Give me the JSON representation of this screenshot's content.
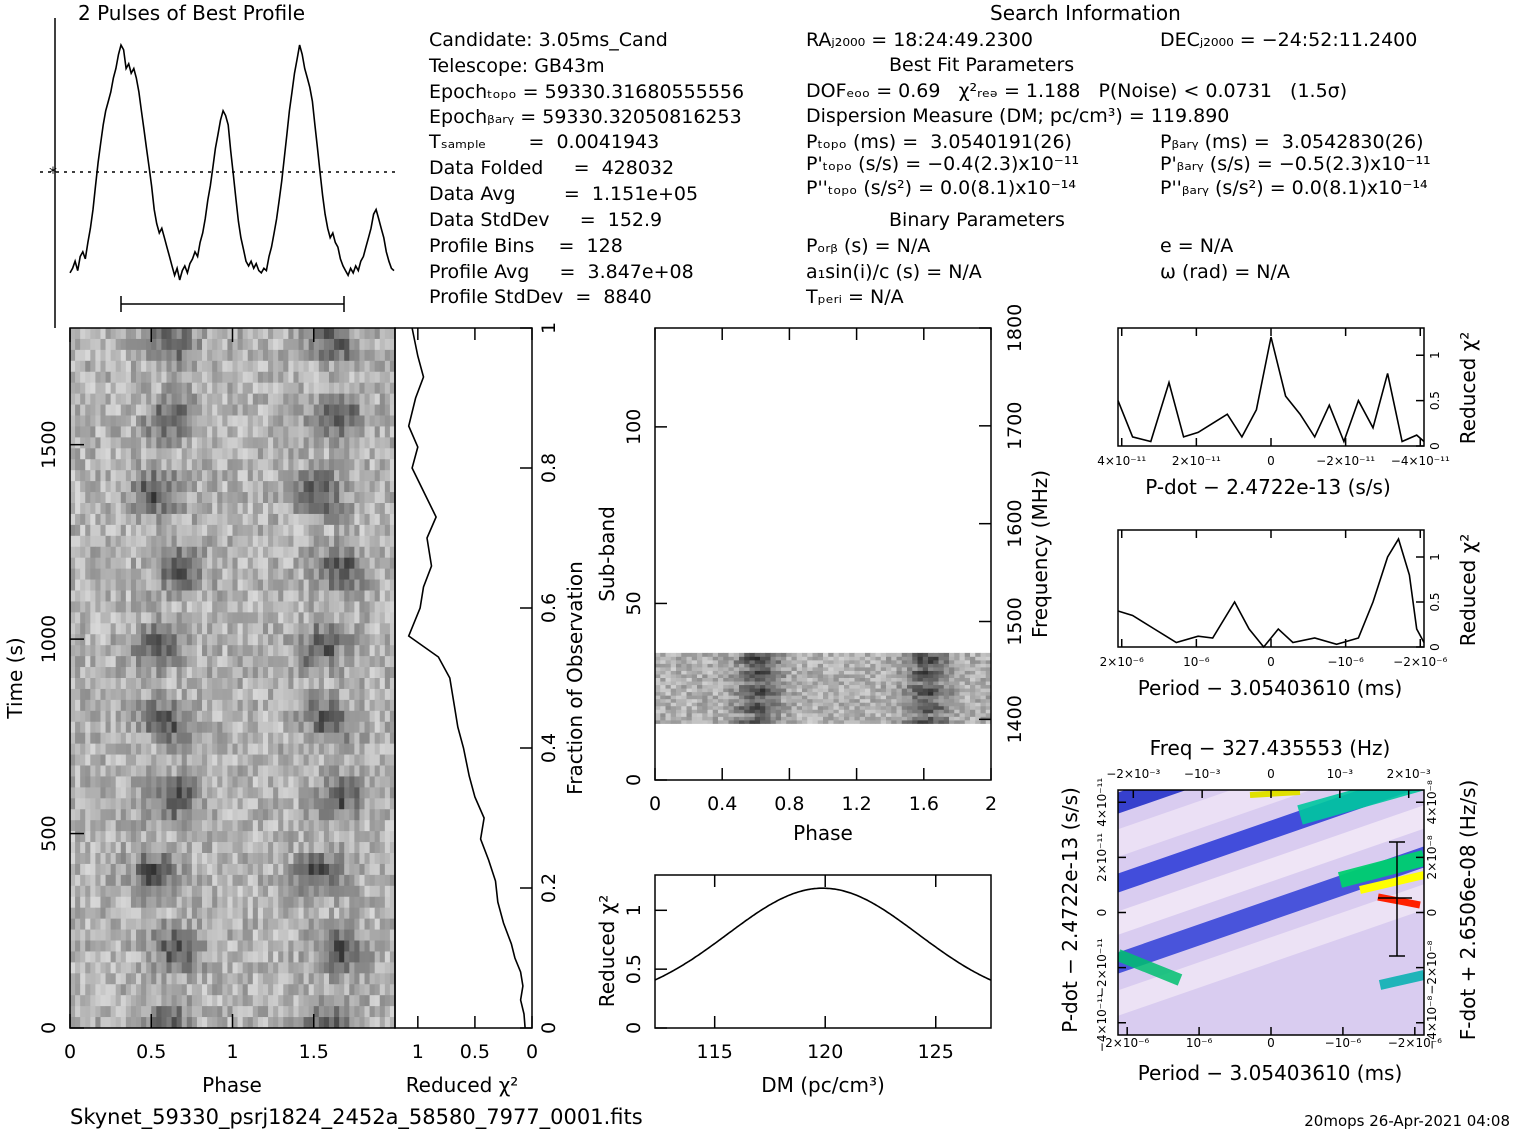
{
  "header": {
    "profile_title": "2 Pulses of Best Profile",
    "search_title": "Search Information",
    "best_fit_title": "Best Fit Parameters",
    "binary_title": "Binary Parameters"
  },
  "search_info": {
    "candidate": "Candidate:  3.05ms_Cand",
    "telescope": "Telescope:  GB43m",
    "epoch_topo": "Epochₜₒₚₒ = 59330.31680555556",
    "epoch_bary": "Epochᵦₐᵣᵧ = 59330.32050816253",
    "t_sample": "Tₛₐₘₚₗₑ       =  0.0041943",
    "data_folded": "Data Folded     =  428032",
    "data_avg": "Data Avg        =  1.151e+05",
    "data_stddev": "Data StdDev     =  152.9",
    "profile_bins": "Profile Bins    =  128",
    "profile_avg": "Profile Avg     =  3.847e+08",
    "profile_stddev": "Profile StdDev  =  8840"
  },
  "fit_info": {
    "ra": "RAⱼ₂₀₀₀ = 18:24:49.2300",
    "dec": "DECⱼ₂₀₀₀ = −24:52:11.2400",
    "dof": "DOFₑₒₒ = 0.69   χ²ᵣₑₔ = 1.188   P(Noise) < 0.0731   (1.5σ)",
    "dm": "Dispersion Measure (DM; pc/cm³) = 119.890",
    "p_topo": "Pₜₒₚₒ (ms) =  3.0540191(26)",
    "p_bary": "Pᵦₐᵣᵧ (ms) =  3.0542830(26)",
    "pd_topo": "P'ₜₒₚₒ (s/s) = −0.4(2.3)x10⁻¹¹",
    "pd_bary": "P'ᵦₐᵣᵧ (s/s) = −0.5(2.3)x10⁻¹¹",
    "pdd_topo": "P''ₜₒₚₒ (s/s²) = 0.0(8.1)x10⁻¹⁴",
    "pdd_bary": "P''ᵦₐᵣᵧ (s/s²) = 0.0(8.1)x10⁻¹⁴",
    "p_orb": "Pₒᵣᵦ (s) = N/A",
    "e": "e = N/A",
    "a1sini": "a₁sin(i)/c (s) = N/A",
    "omega": "ω (rad) = N/A",
    "t_peri": "Tₚₑᵣᵢ = N/A"
  },
  "footer": {
    "filename": "Skynet_59330_psrj1824_2452a_58580_7977_0001.fits",
    "stamp": "20mops 26-Apr-2021 04:08"
  },
  "colors": {
    "ink": "#000000",
    "background": "#ffffff",
    "hot": "#ff0000",
    "warm": "#ffff00",
    "mid": "#00ff80",
    "cool": "#0000ff"
  },
  "chart_data": [
    {
      "id": "profile",
      "type": "line",
      "title": "2 Pulses of Best Profile",
      "x_range": [
        0,
        2
      ],
      "values": [
        0.03,
        0.05,
        0.08,
        0.04,
        0.1,
        0.12,
        0.09,
        0.16,
        0.22,
        0.3,
        0.4,
        0.5,
        0.58,
        0.66,
        0.72,
        0.76,
        0.8,
        0.86,
        0.9,
        0.96,
        1.0,
        0.98,
        0.9,
        0.92,
        0.88,
        0.9,
        0.86,
        0.8,
        0.72,
        0.64,
        0.56,
        0.48,
        0.4,
        0.3,
        0.24,
        0.2,
        0.22,
        0.18,
        0.14,
        0.1,
        0.06,
        0.02,
        0.05,
        0.0,
        0.04,
        0.06,
        0.03,
        0.07,
        0.09,
        0.12,
        0.1,
        0.16,
        0.2,
        0.26,
        0.34,
        0.4,
        0.48,
        0.56,
        0.62,
        0.68,
        0.72,
        0.7,
        0.66,
        0.55,
        0.45,
        0.35,
        0.25,
        0.18,
        0.13,
        0.08,
        0.06,
        0.08,
        0.05,
        0.07,
        0.04,
        0.03,
        0.05,
        0.04,
        0.1,
        0.14,
        0.2,
        0.26,
        0.34,
        0.42,
        0.52,
        0.62,
        0.72,
        0.8,
        0.88,
        0.94,
        1.0,
        0.96,
        0.9,
        0.86,
        0.82,
        0.76,
        0.66,
        0.56,
        0.46,
        0.36,
        0.28,
        0.22,
        0.18,
        0.2,
        0.16,
        0.14,
        0.09,
        0.06,
        0.04,
        0.02,
        0.05,
        0.03,
        0.06,
        0.04,
        0.08,
        0.1,
        0.14,
        0.18,
        0.22,
        0.28,
        0.3,
        0.26,
        0.22,
        0.18,
        0.12,
        0.08,
        0.05,
        0.04
      ]
    },
    {
      "id": "time-phase",
      "type": "heatmap",
      "xlabel": "Phase",
      "ylabel": "Time (s)",
      "x_ticks": [
        "0",
        "0.5",
        "1",
        "1.5"
      ],
      "y_ticks": [
        "0",
        "500",
        "1000",
        "1500"
      ],
      "x_range": [
        0,
        2
      ],
      "y_range": [
        0,
        1800
      ]
    },
    {
      "id": "chi-vs-time",
      "type": "line",
      "xlabel": "Reduced χ²",
      "ylabel": "Fraction of Observation",
      "x_ticks": [
        "1",
        "0.5",
        "0"
      ],
      "y_ticks": [
        "0",
        "0.2",
        "0.4",
        "0.6",
        "0.8",
        "1"
      ],
      "x_range": [
        1.2,
        0
      ],
      "y_range": [
        0,
        1
      ],
      "fraction": [
        0,
        0.02,
        0.04,
        0.06,
        0.08,
        0.1,
        0.12,
        0.15,
        0.18,
        0.21,
        0.24,
        0.27,
        0.3,
        0.33,
        0.36,
        0.4,
        0.43,
        0.46,
        0.5,
        0.53,
        0.56,
        0.6,
        0.63,
        0.66,
        0.7,
        0.73,
        0.76,
        0.8,
        0.83,
        0.86,
        0.9,
        0.93,
        0.96,
        1.0
      ],
      "chi": [
        0.06,
        0.07,
        0.1,
        0.08,
        0.1,
        0.15,
        0.18,
        0.25,
        0.3,
        0.32,
        0.38,
        0.45,
        0.42,
        0.5,
        0.55,
        0.6,
        0.65,
        0.68,
        0.72,
        0.82,
        1.08,
        0.98,
        0.95,
        0.88,
        0.92,
        0.84,
        0.93,
        1.05,
        1.0,
        1.08,
        1.02,
        0.95,
        1.0,
        1.05
      ]
    },
    {
      "id": "subband-phase",
      "type": "heatmap",
      "xlabel": "Phase",
      "ylabel": "Sub-band",
      "y2label": "Frequency (MHz)",
      "x_ticks": [
        "0",
        "0.4",
        "0.8",
        "1.2",
        "1.6",
        "2"
      ],
      "y_ticks": [
        "0",
        "50",
        "100"
      ],
      "y2_ticks": [
        "1400",
        "1500",
        "1600",
        "1700",
        "1800"
      ],
      "x_range": [
        0,
        2
      ],
      "y_range": [
        0,
        128
      ],
      "active_subbands": [
        16,
        35
      ]
    },
    {
      "id": "chi-vs-dm",
      "type": "line",
      "xlabel": "DM (pc/cm³)",
      "ylabel": "Reduced χ²",
      "x_ticks": [
        "115",
        "120",
        "125"
      ],
      "y_ticks": [
        "0",
        "0.5",
        "1"
      ],
      "x_range": [
        112.3,
        127.5
      ],
      "y_range": [
        0,
        1.3
      ],
      "peak_dm": 119.89,
      "peak_chi": 1.188
    },
    {
      "id": "chi-vs-pdot",
      "type": "line",
      "xlabel": "P-dot − 2.4722e-13 (s/s)",
      "ylabel": "Reduced χ²",
      "x_ticks": [
        "4×10⁻¹¹",
        "2×10⁻¹¹",
        "0",
        "−2×10⁻¹¹",
        "−4×10⁻¹¹"
      ],
      "y_ticks": [
        "0",
        "0.5",
        "1"
      ],
      "x_range": [
        4.2e-11,
        -4.2e-11
      ],
      "y_range": [
        0,
        1.3
      ],
      "x": [
        4.2e-11,
        3.8e-11,
        3.3e-11,
        2.8e-11,
        2.4e-11,
        2e-11,
        1.6e-11,
        1.2e-11,
        8e-12,
        4e-12,
        0,
        -4e-12,
        -8e-12,
        -1.2e-11,
        -1.6e-11,
        -2e-11,
        -2.4e-11,
        -2.8e-11,
        -3.2e-11,
        -3.6e-11,
        -4e-11,
        -4.2e-11
      ],
      "y": [
        0.5,
        0.1,
        0.05,
        0.7,
        0.1,
        0.15,
        0.25,
        0.35,
        0.1,
        0.4,
        1.2,
        0.55,
        0.35,
        0.1,
        0.45,
        0.05,
        0.5,
        0.2,
        0.8,
        0.05,
        0.12,
        0.05
      ]
    },
    {
      "id": "chi-vs-period",
      "type": "line",
      "xlabel": "Period − 3.05403610 (ms)",
      "ylabel": "Reduced χ²",
      "x_ticks": [
        "2×10⁻⁶",
        "10⁻⁶",
        "0",
        "−10⁻⁶",
        "−2×10⁻⁶"
      ],
      "y_ticks": [
        "0",
        "0.5",
        "1"
      ],
      "x_range": [
        2.1e-06,
        -2.1e-06
      ],
      "y_range": [
        0,
        1.3
      ],
      "x": [
        2.1e-06,
        1.9e-06,
        1.6e-06,
        1.3e-06,
        1e-06,
        8e-07,
        5e-07,
        3e-07,
        1e-07,
        -1e-07,
        -3e-07,
        -6e-07,
        -9e-07,
        -1.2e-06,
        -1.4e-06,
        -1.6e-06,
        -1.75e-06,
        -1.9e-06,
        -2e-06,
        -2.1e-06
      ],
      "y": [
        0.4,
        0.35,
        0.2,
        0.05,
        0.12,
        0.1,
        0.5,
        0.2,
        0.0,
        0.2,
        0.05,
        0.1,
        0.03,
        0.1,
        0.5,
        1.0,
        1.2,
        0.8,
        0.2,
        0.05
      ]
    },
    {
      "id": "p-pdot-plane",
      "type": "heatmap",
      "title": "Freq − 327.435553 (Hz)",
      "xlabel": "Period − 3.05403610 (ms)",
      "ylabel": "P-dot − 2.4722e-13 (s/s)",
      "y2label": "F-dot + 2.6506e-08 (Hz/s)",
      "top_ticks": [
        "−2×10⁻³",
        "−10⁻³",
        "0",
        "10⁻³",
        "2×10⁻³"
      ],
      "bottom_ticks": [
        "2×10⁻⁶",
        "10⁻⁶",
        "0",
        "−10⁻⁶",
        "−2×10⁻⁶"
      ],
      "left_ticks": [
        "−4×10⁻¹¹",
        "−2×10⁻¹¹",
        "0",
        "2×10⁻¹¹",
        "4×10⁻¹¹"
      ],
      "right_ticks": [
        "−4×10⁻⁸",
        "−2×10⁻⁸",
        "0",
        "2×10⁻⁸",
        "4×10⁻⁸"
      ]
    }
  ]
}
